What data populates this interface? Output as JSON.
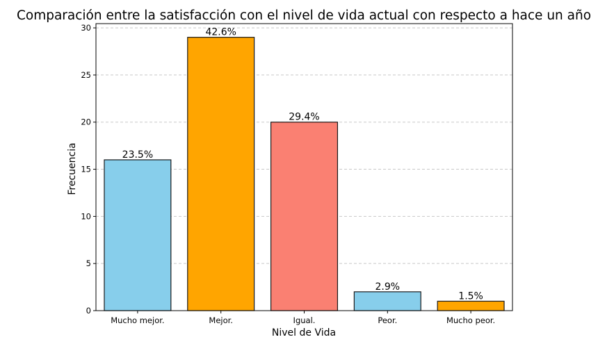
{
  "chart_data": {
    "type": "bar",
    "title": "Comparación entre la satisfacción con el nivel de vida actual con respecto a hace un año",
    "xlabel": "Nivel de Vida",
    "ylabel": "Frecuencia",
    "categories": [
      "Mucho mejor.",
      "Mejor.",
      "Igual.",
      "Peor.",
      "Mucho peor."
    ],
    "values": [
      16,
      29,
      20,
      2,
      1
    ],
    "bar_labels": [
      "23.5%",
      "42.6%",
      "29.4%",
      "2.9%",
      "1.5%"
    ],
    "colors": [
      "#87ceeb",
      "#ffa500",
      "#fa8072",
      "#87ceeb",
      "#ffa500"
    ],
    "ylim": [
      0,
      30.45
    ],
    "yticks": [
      0,
      5,
      10,
      15,
      20,
      25,
      30
    ],
    "grid": "y-dashed",
    "legend": "none"
  }
}
